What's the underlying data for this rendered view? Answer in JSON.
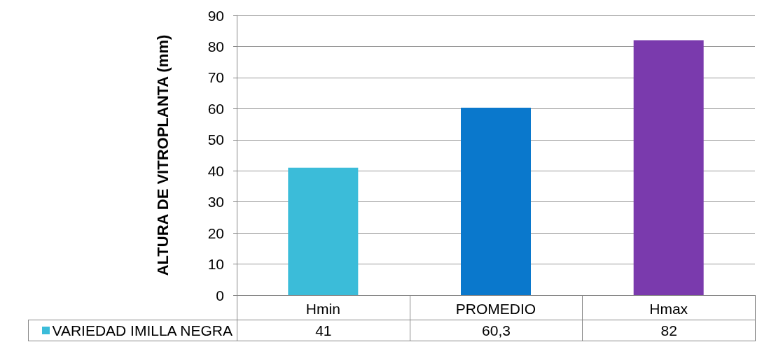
{
  "chart_data": {
    "type": "bar",
    "ylabel": "ALTURA DE VITROPLANTA (mm)",
    "categories": [
      "Hmin",
      "PROMEDIO",
      "Hmax"
    ],
    "series": [
      {
        "name": "VARIEDAD IMILLA NEGRA",
        "colors": [
          "#3bbcd9",
          "#0a78cc",
          "#7a3aad"
        ],
        "values": [
          41,
          60.3,
          82
        ],
        "value_labels": [
          "41",
          "60,3",
          "82"
        ]
      }
    ],
    "ylim": [
      0,
      90
    ],
    "yticks": [
      0,
      10,
      20,
      30,
      40,
      50,
      60,
      70,
      80,
      90
    ],
    "grid": "y"
  }
}
